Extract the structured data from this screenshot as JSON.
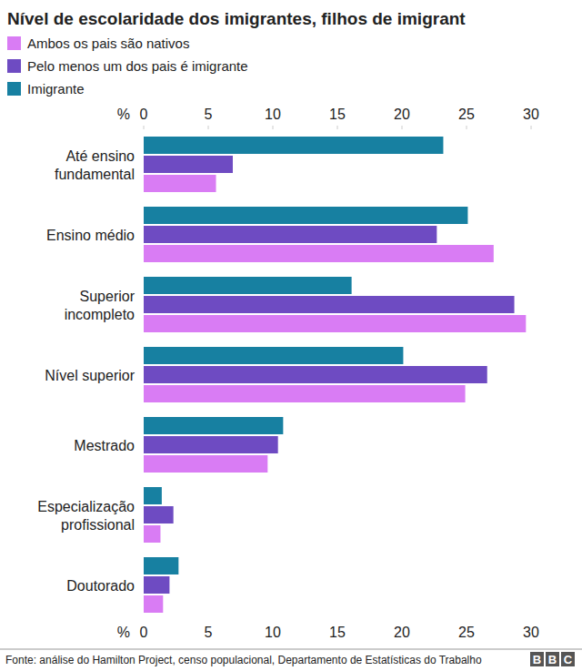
{
  "chart_data": {
    "type": "bar",
    "orientation": "horizontal",
    "title": "Nível de escolaridade dos imigrantes, filhos de imigrant",
    "categories": [
      "Até ensino\nfundamental",
      "Ensino médio",
      "Superior\nincompleto",
      "Nível superior",
      "Mestrado",
      "Especialização\nprofissional",
      "Doutorado"
    ],
    "series": [
      {
        "name": "Imigrante",
        "color": "#1780a1",
        "values": [
          23.2,
          25.1,
          16.1,
          20.1,
          10.8,
          1.4,
          2.7
        ]
      },
      {
        "name": "Pelo menos um dos pais é imigrante",
        "color": "#6e4bc2",
        "values": [
          6.9,
          22.7,
          28.7,
          26.6,
          10.4,
          2.3,
          2.0
        ]
      },
      {
        "name": "Ambos os pais são nativos",
        "color": "#d97cf4",
        "values": [
          5.6,
          27.1,
          29.6,
          24.9,
          9.6,
          1.3,
          1.5
        ]
      }
    ],
    "legend_order": [
      "Ambos os pais são nativos",
      "Pelo menos um dos pais é imigrante",
      "Imigrante"
    ],
    "x_label": "%",
    "xlim": [
      0,
      30
    ],
    "xticks": [
      0,
      5,
      10,
      15,
      20,
      25,
      30
    ],
    "grid": false,
    "legend": "top-left",
    "source": "Fonte: análise do Hamilton Project, censo populacional, Departamento de Estatísticas do Trabalho",
    "logo": "BBC"
  }
}
